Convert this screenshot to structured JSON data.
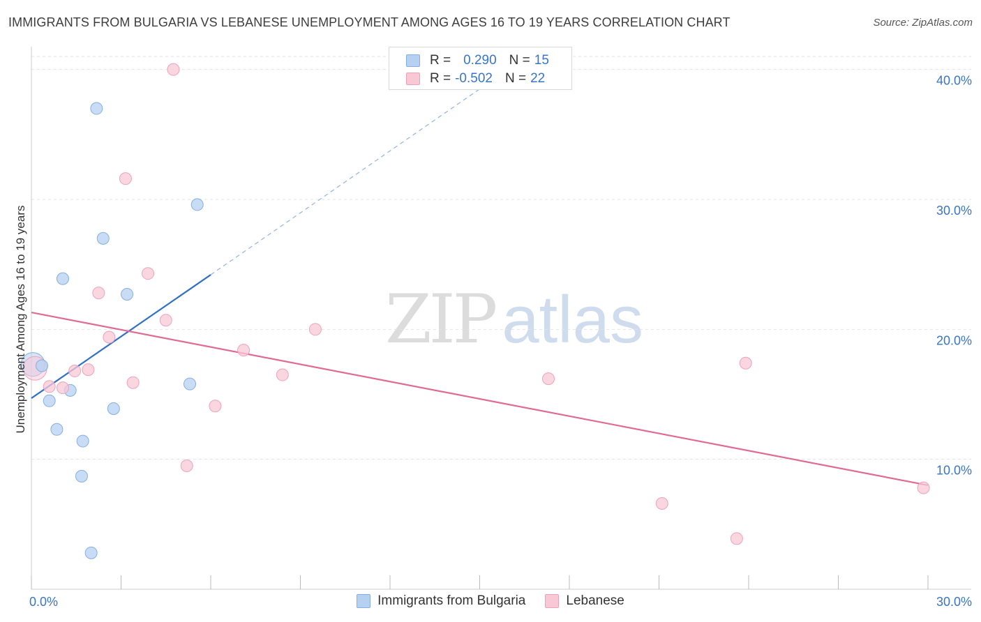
{
  "header": {
    "title": "IMMIGRANTS FROM BULGARIA VS LEBANESE UNEMPLOYMENT AMONG AGES 16 TO 19 YEARS CORRELATION CHART",
    "source": "Source: ZipAtlas.com"
  },
  "watermark": {
    "zip": "ZIP",
    "atlas": "atlas"
  },
  "legend": {
    "series1": {
      "r_label": "R = ",
      "r_value": "0.290",
      "n_label": "N = ",
      "n_value": "15"
    },
    "series2": {
      "r_label": "R = ",
      "r_value": "-0.502",
      "n_label": "N = ",
      "n_value": "22"
    }
  },
  "bottom_legend": {
    "series1": "Immigrants from Bulgaria",
    "series2": "Lebanese"
  },
  "colors": {
    "series1_fill": "#b6d0f2",
    "series1_stroke": "#86aee0",
    "series1_line": "#2f6fc6",
    "series2_fill": "#f8c8d7",
    "series2_stroke": "#eda2bb",
    "series2_line": "#e06a94",
    "tick_text": "#3a74c8",
    "grid": "#e3e3e3"
  },
  "chart_data": {
    "type": "scatter",
    "title": "IMMIGRANTS FROM BULGARIA VS LEBANESE UNEMPLOYMENT AMONG AGES 16 TO 19 YEARS CORRELATION CHART",
    "xlabel": "",
    "ylabel": "Unemployment Among Ages 16 to 19 years",
    "xlim": [
      0,
      30
    ],
    "ylim": [
      0,
      41
    ],
    "x_ticks": [
      0,
      3,
      6,
      9,
      12,
      15,
      18,
      21,
      24,
      27,
      30
    ],
    "x_tick_labels": [
      {
        "value": 0,
        "label": "0.0%"
      },
      {
        "value": 30,
        "label": "30.0%"
      }
    ],
    "y_ticks": [
      10,
      20,
      30,
      40
    ],
    "y_tick_labels": [
      "10.0%",
      "20.0%",
      "30.0%",
      "40.0%"
    ],
    "series": [
      {
        "name": "Immigrants from Bulgaria",
        "R": 0.29,
        "N": 15,
        "points": [
          {
            "x": 0.05,
            "y": 17.3,
            "big": true
          },
          {
            "x": 0.35,
            "y": 17.2
          },
          {
            "x": 0.6,
            "y": 14.5
          },
          {
            "x": 0.85,
            "y": 12.3
          },
          {
            "x": 1.05,
            "y": 23.9
          },
          {
            "x": 1.3,
            "y": 15.3
          },
          {
            "x": 1.68,
            "y": 8.7
          },
          {
            "x": 1.72,
            "y": 11.4
          },
          {
            "x": 2.0,
            "y": 2.8
          },
          {
            "x": 2.18,
            "y": 37.0
          },
          {
            "x": 2.4,
            "y": 27.0
          },
          {
            "x": 2.75,
            "y": 13.9
          },
          {
            "x": 3.2,
            "y": 22.7
          },
          {
            "x": 5.3,
            "y": 15.8
          },
          {
            "x": 5.55,
            "y": 29.6
          }
        ],
        "trend": {
          "x": [
            0,
            6
          ],
          "y": [
            14.7,
            24.2
          ]
        },
        "trend_extension": {
          "x": [
            6,
            15
          ],
          "y": [
            24.2,
            38.5
          ]
        }
      },
      {
        "name": "Lebanese",
        "R": -0.502,
        "N": 22,
        "points": [
          {
            "x": 0.12,
            "y": 17.0,
            "big": true
          },
          {
            "x": 0.6,
            "y": 15.6
          },
          {
            "x": 1.05,
            "y": 15.5
          },
          {
            "x": 1.45,
            "y": 16.8
          },
          {
            "x": 1.9,
            "y": 16.9
          },
          {
            "x": 2.25,
            "y": 22.8
          },
          {
            "x": 2.6,
            "y": 19.4
          },
          {
            "x": 3.15,
            "y": 31.6
          },
          {
            "x": 3.4,
            "y": 15.9
          },
          {
            "x": 3.9,
            "y": 24.3
          },
          {
            "x": 4.5,
            "y": 20.7
          },
          {
            "x": 4.75,
            "y": 40.0
          },
          {
            "x": 5.2,
            "y": 9.5
          },
          {
            "x": 6.15,
            "y": 14.1
          },
          {
            "x": 7.1,
            "y": 18.4
          },
          {
            "x": 8.4,
            "y": 16.5
          },
          {
            "x": 9.5,
            "y": 20.0
          },
          {
            "x": 17.3,
            "y": 16.2
          },
          {
            "x": 21.1,
            "y": 6.6
          },
          {
            "x": 23.6,
            "y": 3.9
          },
          {
            "x": 23.9,
            "y": 17.4
          },
          {
            "x": 29.85,
            "y": 7.8
          }
        ],
        "trend": {
          "x": [
            0,
            30
          ],
          "y": [
            21.3,
            8.0
          ]
        }
      }
    ]
  }
}
